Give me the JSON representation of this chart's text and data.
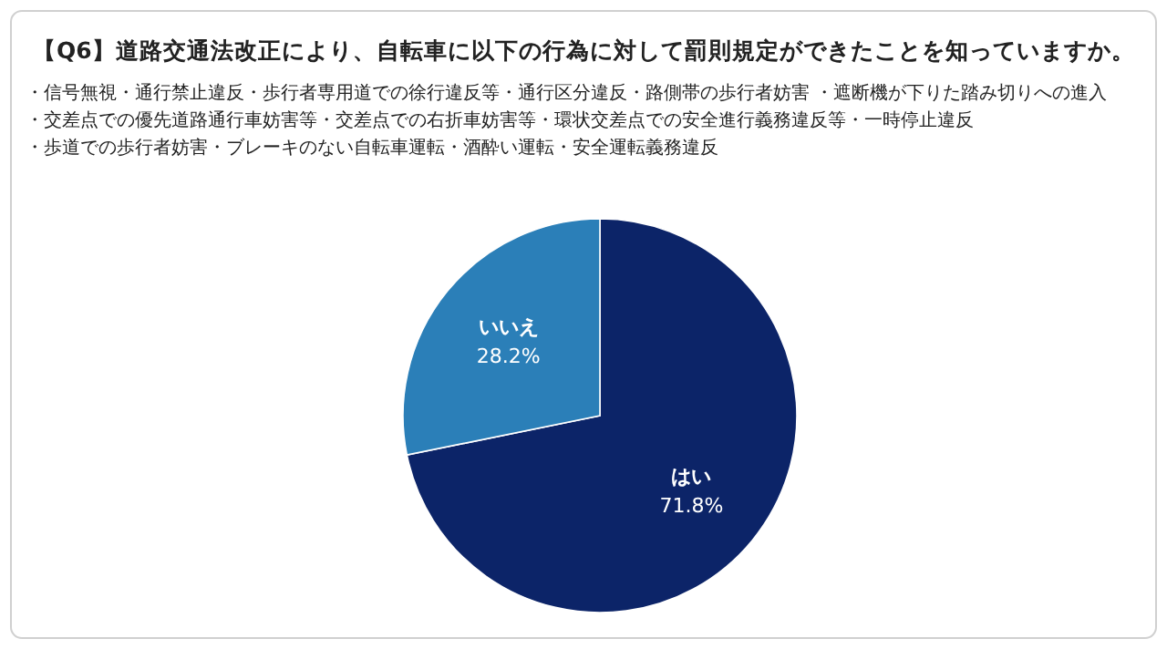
{
  "chart_data": {
    "type": "pie",
    "title": "【Q6】道路交通法改正により、自転車に以下の行為に対して罰則規定ができたことを知っていますか。",
    "annotations": [
      "・信号無視・通行禁止違反・歩行者専用道での徐行違反等・通行区分違反・路側帯の歩行者妨害 ・遮断機が下りた踏み切りへの進入",
      "・交差点での優先道路通行車妨害等・交差点での右折車妨害等・環状交差点での安全進行義務違反等・一時停止違反",
      "・歩道での歩行者妨害・ブレーキのない自転車運転・酒酔い運転・安全運転義務違反"
    ],
    "categories": [
      "はい",
      "いいえ"
    ],
    "values": [
      71.8,
      28.2
    ],
    "value_labels": [
      "71.8%",
      "28.2%"
    ],
    "colors": [
      "#0c2468",
      "#2b7fb8"
    ]
  }
}
